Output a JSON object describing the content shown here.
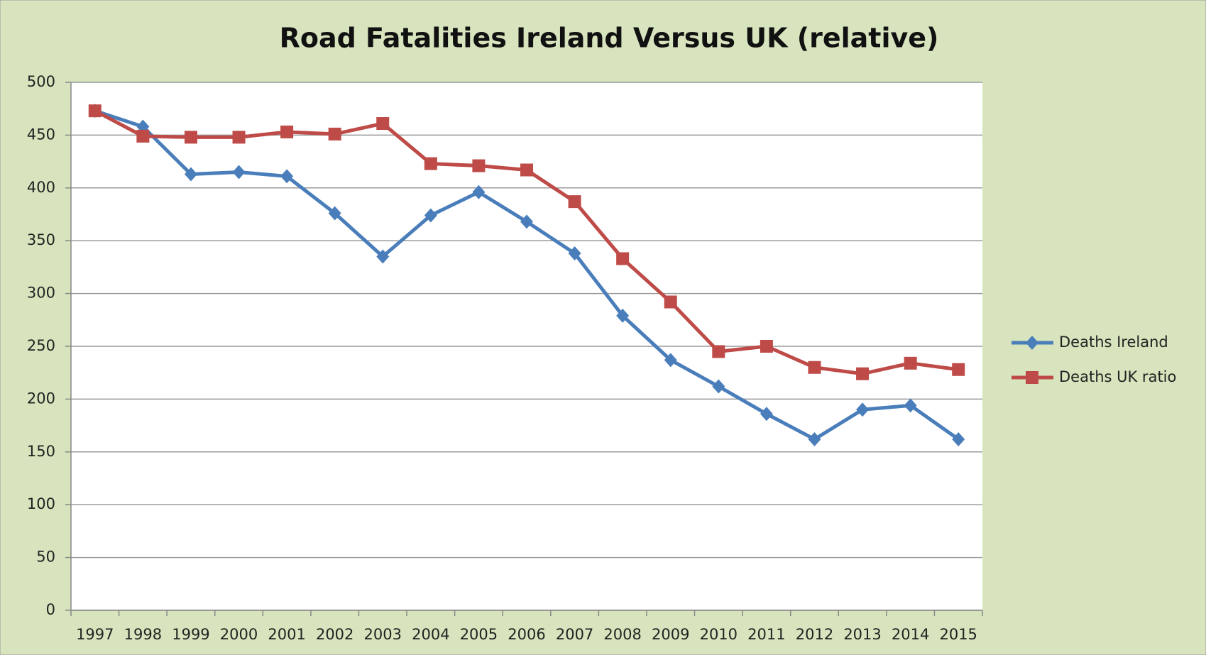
{
  "chart_data": {
    "type": "line",
    "title": "Road Fatalities Ireland Versus UK (relative)",
    "categories": [
      "1997",
      "1998",
      "1999",
      "2000",
      "2001",
      "2002",
      "2003",
      "2004",
      "2005",
      "2006",
      "2007",
      "2008",
      "2009",
      "2010",
      "2011",
      "2012",
      "2013",
      "2014",
      "2015"
    ],
    "series": [
      {
        "name": "Deaths Ireland",
        "color": "#4a7ebb",
        "marker": "diamond",
        "values": [
          473,
          458,
          413,
          415,
          411,
          376,
          335,
          374,
          396,
          368,
          338,
          279,
          237,
          212,
          186,
          162,
          190,
          194,
          162
        ]
      },
      {
        "name": "Deaths UK ratio",
        "color": "#be4b48",
        "marker": "square",
        "values": [
          473,
          449,
          448,
          448,
          453,
          451,
          461,
          423,
          421,
          417,
          387,
          333,
          292,
          245,
          250,
          230,
          224,
          234,
          228
        ]
      }
    ],
    "ylim": [
      0,
      500
    ],
    "yticks": [
      0,
      50,
      100,
      150,
      200,
      250,
      300,
      350,
      400,
      450,
      500
    ],
    "grid": true,
    "legend": "right"
  }
}
